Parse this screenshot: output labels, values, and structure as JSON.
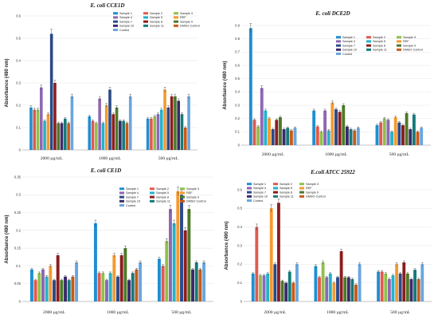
{
  "figure_title": "",
  "series_names": [
    "Sample 1",
    "Sample 2",
    "Sample 3",
    "Sample 4",
    "Sample 5",
    "REF",
    "Sample 7",
    "Sample 8",
    "Sample 9",
    "Sample 10",
    "Sample 11",
    "DMSO Control",
    "Control"
  ],
  "series_colors": [
    "#1f8fd1",
    "#e05a4f",
    "#8fc04b",
    "#8f67b3",
    "#23b3cc",
    "#f59a2e",
    "#2a4a8a",
    "#8b1d1d",
    "#4d7a2a",
    "#3a2a6a",
    "#157a7a",
    "#c85a18",
    "#6aa6df"
  ],
  "chart_data": [
    {
      "type": "bar",
      "title": "E. coli CCE1D",
      "ylabel": "Absorbance (490 nm)",
      "xlabel": "",
      "categories": [
        "2000 µg/mL",
        "1000 µg/mL",
        "500 µg/mL"
      ],
      "ylim": [
        0,
        0.6
      ],
      "yticks": [
        "0",
        "0.1",
        "0.2",
        "0.3",
        "0.4",
        "0.5",
        "0.6"
      ],
      "series": [
        {
          "name": "Sample 1",
          "values": [
            0.19,
            0.15,
            0.14
          ]
        },
        {
          "name": "Sample 2",
          "values": [
            0.18,
            0.13,
            0.14
          ]
        },
        {
          "name": "Sample 3",
          "values": [
            0.18,
            0.12,
            0.15
          ]
        },
        {
          "name": "Sample 4",
          "values": [
            0.28,
            0.23,
            0.16
          ]
        },
        {
          "name": "Sample 5",
          "values": [
            0.13,
            0.12,
            0.18
          ]
        },
        {
          "name": "REF",
          "values": [
            0.16,
            0.2,
            0.27
          ]
        },
        {
          "name": "Sample 7",
          "values": [
            0.52,
            0.27,
            0.19
          ]
        },
        {
          "name": "Sample 8",
          "values": [
            0.3,
            0.16,
            0.24
          ]
        },
        {
          "name": "Sample 9",
          "values": [
            0.12,
            0.19,
            0.24
          ]
        },
        {
          "name": "Sample 10",
          "values": [
            0.12,
            0.13,
            0.22
          ]
        },
        {
          "name": "Sample 11",
          "values": [
            0.14,
            0.13,
            0.16
          ]
        },
        {
          "name": "DMSO Control",
          "values": [
            0.12,
            0.12,
            0.1
          ]
        },
        {
          "name": "Control",
          "values": [
            0.24,
            0.24,
            0.24
          ]
        }
      ]
    },
    {
      "type": "bar",
      "title": "E. coli DCE2D",
      "ylabel": "Absorbance (490 nm)",
      "xlabel": "",
      "categories": [
        "2000 µg/mL",
        "1000 µg/mL",
        "500 µg/mL"
      ],
      "ylim": [
        0,
        0.9
      ],
      "yticks": [
        "0",
        "0.1",
        "0.2",
        "0.3",
        "0.4",
        "0.5",
        "0.6",
        "0.7",
        "0.8",
        "0.9"
      ],
      "series": [
        {
          "name": "Sample 1",
          "values": [
            0.88,
            0.26,
            0.15
          ]
        },
        {
          "name": "Sample 2",
          "values": [
            0.19,
            0.14,
            0.17
          ]
        },
        {
          "name": "Sample 3",
          "values": [
            0.14,
            0.1,
            0.2
          ]
        },
        {
          "name": "Sample 4",
          "values": [
            0.43,
            0.26,
            0.19
          ]
        },
        {
          "name": "Sample 5",
          "values": [
            0.26,
            0.11,
            0.1
          ]
        },
        {
          "name": "REF",
          "values": [
            0.2,
            0.32,
            0.21
          ]
        },
        {
          "name": "Sample 7",
          "values": [
            0.12,
            0.27,
            0.17
          ]
        },
        {
          "name": "Sample 8",
          "values": [
            0.19,
            0.25,
            0.15
          ]
        },
        {
          "name": "Sample 9",
          "values": [
            0.21,
            0.3,
            0.24
          ]
        },
        {
          "name": "Sample 10",
          "values": [
            0.12,
            0.14,
            0.12
          ]
        },
        {
          "name": "Sample 11",
          "values": [
            0.13,
            0.12,
            0.23
          ]
        },
        {
          "name": "DMSO Control",
          "values": [
            0.11,
            0.11,
            0.1
          ]
        },
        {
          "name": "Control",
          "values": [
            0.13,
            0.13,
            0.13
          ]
        }
      ]
    },
    {
      "type": "bar",
      "title": "E. coli CE1D",
      "ylabel": "Absorbance (490 nm)",
      "xlabel": "",
      "categories": [
        "2000 µg/mL",
        "1000 µg/mL",
        "500 µg/mL"
      ],
      "ylim": [
        0,
        0.35
      ],
      "yticks": [
        "0",
        "0.05",
        "0.1",
        "0.15",
        "0.2",
        "0.25",
        "0.3",
        "0.35"
      ],
      "series": [
        {
          "name": "Sample 1",
          "values": [
            0.09,
            0.22,
            0.12
          ]
        },
        {
          "name": "Sample 2",
          "values": [
            0.06,
            0.08,
            0.1
          ]
        },
        {
          "name": "Sample 3",
          "values": [
            0.08,
            0.08,
            0.17
          ]
        },
        {
          "name": "Sample 4",
          "values": [
            0.09,
            0.06,
            0.26
          ]
        },
        {
          "name": "Sample 5",
          "values": [
            0.07,
            0.08,
            0.22
          ]
        },
        {
          "name": "REF",
          "values": [
            0.1,
            0.13,
            0.31
          ]
        },
        {
          "name": "Sample 7",
          "values": [
            0.06,
            0.07,
            0.3
          ]
        },
        {
          "name": "Sample 8",
          "values": [
            0.13,
            0.13,
            0.2
          ]
        },
        {
          "name": "Sample 9",
          "values": [
            0.06,
            0.15,
            0.26
          ]
        },
        {
          "name": "Sample 10",
          "values": [
            0.07,
            0.06,
            0.09
          ]
        },
        {
          "name": "Sample 11",
          "values": [
            0.06,
            0.08,
            0.11
          ]
        },
        {
          "name": "DMSO Control",
          "values": [
            0.07,
            0.09,
            0.09
          ]
        },
        {
          "name": "Control",
          "values": [
            0.11,
            0.11,
            0.11
          ]
        }
      ]
    },
    {
      "type": "bar",
      "title": "E.coli ATCC 25922",
      "ylabel": "Absorbance (490 nm)",
      "xlabel": "",
      "categories": [
        "2000 µg/mL",
        "1000 µg/mL",
        "500 µg/mL"
      ],
      "ylim": [
        0,
        0.6
      ],
      "yticks": [
        "0",
        "0.1",
        "0.2",
        "0.3",
        "0.4",
        "0.5",
        "0.6"
      ],
      "series": [
        {
          "name": "Sample 1",
          "values": [
            0.15,
            0.19,
            0.16
          ]
        },
        {
          "name": "Sample 2",
          "values": [
            0.4,
            0.13,
            0.16
          ]
        },
        {
          "name": "Sample 3",
          "values": [
            0.14,
            0.21,
            0.15
          ]
        },
        {
          "name": "Sample 4",
          "values": [
            0.14,
            0.13,
            0.12
          ]
        },
        {
          "name": "Sample 5",
          "values": [
            0.15,
            0.15,
            0.14
          ]
        },
        {
          "name": "REF",
          "values": [
            0.5,
            0.1,
            0.2
          ]
        },
        {
          "name": "Sample 7",
          "values": [
            0.2,
            0.13,
            0.15
          ]
        },
        {
          "name": "Sample 8",
          "values": [
            0.53,
            0.27,
            0.21
          ]
        },
        {
          "name": "Sample 9",
          "values": [
            0.11,
            0.13,
            0.15
          ]
        },
        {
          "name": "Sample 10",
          "values": [
            0.1,
            0.13,
            0.12
          ]
        },
        {
          "name": "Sample 11",
          "values": [
            0.16,
            0.12,
            0.17
          ]
        },
        {
          "name": "DMSO Control",
          "values": [
            0.1,
            0.09,
            0.12
          ]
        },
        {
          "name": "Control",
          "values": [
            0.2,
            0.2,
            0.2
          ]
        }
      ]
    }
  ]
}
